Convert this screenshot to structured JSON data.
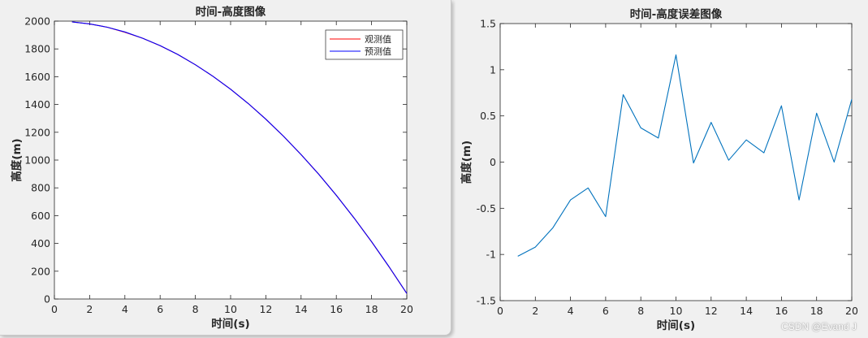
{
  "watermark": "CSDN @Evand J",
  "chart_data": [
    {
      "type": "line",
      "title": "时间-高度图像",
      "xlabel": "时间(s)",
      "ylabel": "高度(m)",
      "xlim": [
        0,
        20
      ],
      "ylim": [
        0,
        2000
      ],
      "xticks": [
        0,
        2,
        4,
        6,
        8,
        10,
        12,
        14,
        16,
        18,
        20
      ],
      "yticks": [
        0,
        200,
        400,
        600,
        800,
        1000,
        1200,
        1400,
        1600,
        1800,
        2000
      ],
      "legend_position": "top-right",
      "series": [
        {
          "name": "观测值",
          "color": "#ff0000",
          "x": [
            1,
            2,
            3,
            4,
            5,
            6,
            7,
            8,
            9,
            10,
            11,
            12,
            13,
            14,
            15,
            16,
            17,
            18,
            19,
            20
          ],
          "values": [
            1994,
            1980,
            1956,
            1920,
            1877,
            1823,
            1760,
            1686,
            1603,
            1510,
            1407,
            1294,
            1172,
            1039,
            898,
            746,
            584,
            412,
            230,
            40
          ]
        },
        {
          "name": "预测值",
          "color": "#0000ff",
          "x": [
            1,
            2,
            3,
            4,
            5,
            6,
            7,
            8,
            9,
            10,
            11,
            12,
            13,
            14,
            15,
            16,
            17,
            18,
            19,
            20
          ],
          "values": [
            1995,
            1980,
            1956,
            1922,
            1877,
            1824,
            1760,
            1686,
            1603,
            1510,
            1407,
            1294,
            1172,
            1040,
            898,
            746,
            584,
            413,
            231,
            40
          ]
        }
      ]
    },
    {
      "type": "line",
      "title": "时间-高度误差图像",
      "xlabel": "时间(s)",
      "ylabel": "高度(m)",
      "xlim": [
        0,
        20
      ],
      "ylim": [
        -1.5,
        1.5
      ],
      "xticks": [
        0,
        2,
        4,
        6,
        8,
        10,
        12,
        14,
        16,
        18,
        20
      ],
      "yticks": [
        -1.5,
        -1,
        -0.5,
        0,
        0.5,
        1,
        1.5
      ],
      "series": [
        {
          "color": "#0072bd",
          "x": [
            1,
            2,
            3,
            4,
            5,
            6,
            7,
            8,
            9,
            10,
            11,
            12,
            13,
            14,
            15,
            16,
            17,
            18,
            19,
            20
          ],
          "values": [
            -1.02,
            -0.92,
            -0.71,
            -0.41,
            -0.28,
            -0.59,
            0.73,
            0.37,
            0.26,
            1.16,
            -0.01,
            0.43,
            0.02,
            0.24,
            0.1,
            0.61,
            -0.41,
            0.53,
            0.0,
            0.68
          ]
        }
      ]
    }
  ]
}
